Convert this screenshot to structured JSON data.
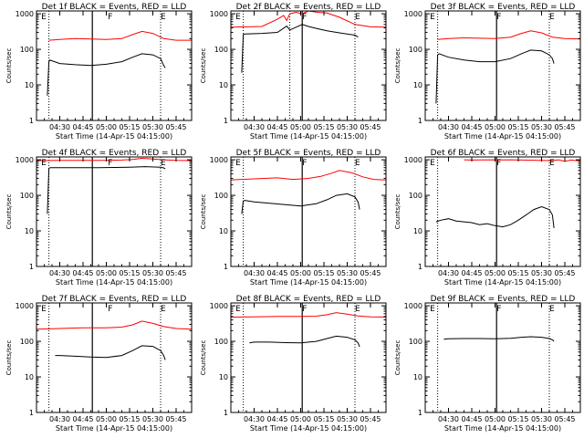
{
  "colors": {
    "events": "#000000",
    "lld": "#ff0000",
    "axes": "#000000",
    "background": "#ffffff"
  },
  "chart_data": [
    {
      "type": "line",
      "title": "Det 1f BLACK = Events, RED = LLD",
      "xlabel": "Start Time (14-Apr-15 04:15:00)",
      "ylabel": "Counts/sec",
      "ylog": true,
      "ylim": [
        1,
        1200
      ],
      "x_unit": "minutes after 04:15:00",
      "xlim": [
        0,
        100
      ],
      "x_ticks": [
        15,
        30,
        45,
        60,
        75,
        90
      ],
      "x_tick_labels": [
        "04:30",
        "04:45",
        "05:00",
        "05:15",
        "05:30",
        "05:45"
      ],
      "y_ticks": [
        1,
        10,
        100,
        1000
      ],
      "y_tick_labels": [
        "1",
        "10",
        "100",
        "1000"
      ],
      "markers": [
        {
          "x": 3,
          "label": "E"
        },
        {
          "x": 46,
          "label": "F"
        },
        {
          "x": 80,
          "label": "E"
        }
      ],
      "dotted_lines": [
        8,
        80
      ],
      "solid_line": 36,
      "series": [
        {
          "name": "LLD",
          "color": "#ff0000",
          "x": [
            8,
            15,
            25,
            35,
            45,
            55,
            62,
            68,
            75,
            82,
            90,
            100
          ],
          "y": [
            180,
            190,
            200,
            195,
            190,
            200,
            260,
            320,
            280,
            200,
            180,
            180
          ]
        },
        {
          "name": "Events",
          "color": "#000000",
          "x": [
            7,
            8,
            8.5,
            15,
            25,
            35,
            45,
            55,
            62,
            68,
            75,
            80,
            82,
            83
          ],
          "y": [
            5,
            45,
            50,
            40,
            37,
            35,
            38,
            45,
            60,
            75,
            70,
            55,
            35,
            30
          ]
        }
      ]
    },
    {
      "type": "line",
      "title": "Det 2f BLACK = Events, RED = LLD",
      "xlabel": "Start Time (14-Apr-15 04:15:00)",
      "ylabel": "Counts/sec",
      "ylog": true,
      "ylim": [
        1,
        1200
      ],
      "x_unit": "minutes after 04:15:00",
      "xlim": [
        0,
        100
      ],
      "x_ticks": [
        15,
        30,
        45,
        60,
        75,
        90
      ],
      "x_tick_labels": [
        "04:30",
        "04:45",
        "05:00",
        "05:15",
        "05:30",
        "05:45"
      ],
      "y_ticks": [
        1,
        10,
        100,
        1000
      ],
      "y_tick_labels": [
        "1",
        "10",
        "100",
        "1000"
      ],
      "markers": [
        {
          "x": 3,
          "label": "E"
        },
        {
          "x": 46,
          "label": "F"
        },
        {
          "x": 80,
          "label": "E"
        }
      ],
      "dotted_lines": [
        8,
        38,
        80
      ],
      "solid_line": 46,
      "series": [
        {
          "name": "LLD",
          "color": "#ff0000",
          "x": [
            0,
            10,
            20,
            30,
            34,
            36,
            38,
            42,
            46,
            50,
            56,
            62,
            70,
            80,
            90,
            100
          ],
          "y": [
            420,
            430,
            440,
            700,
            900,
            650,
            1000,
            1100,
            1000,
            1200,
            1100,
            1050,
            800,
            500,
            430,
            420
          ]
        },
        {
          "name": "Events",
          "color": "#000000",
          "x": [
            7,
            8,
            9,
            20,
            30,
            36,
            38,
            42,
            46,
            50,
            56,
            62,
            70,
            80,
            82
          ],
          "y": [
            22,
            260,
            270,
            280,
            300,
            450,
            350,
            420,
            500,
            440,
            380,
            330,
            290,
            250,
            220
          ]
        }
      ]
    },
    {
      "type": "line",
      "title": "Det 3f BLACK = Events, RED = LLD",
      "xlabel": "Start Time (14-Apr-15 04:15:00)",
      "ylabel": "Counts/sec",
      "ylog": true,
      "ylim": [
        1,
        1200
      ],
      "x_unit": "minutes after 04:15:00",
      "xlim": [
        0,
        100
      ],
      "x_ticks": [
        15,
        30,
        45,
        60,
        75,
        90
      ],
      "x_tick_labels": [
        "04:30",
        "04:45",
        "05:00",
        "05:15",
        "05:30",
        "05:45"
      ],
      "y_ticks": [
        1,
        10,
        100,
        1000
      ],
      "y_tick_labels": [
        "1",
        "10",
        "100",
        "1000"
      ],
      "markers": [
        {
          "x": 3,
          "label": "E"
        },
        {
          "x": 46,
          "label": "F"
        },
        {
          "x": 80,
          "label": "E"
        }
      ],
      "dotted_lines": [
        8,
        80
      ],
      "solid_line": 46,
      "series": [
        {
          "name": "LLD",
          "color": "#ff0000",
          "x": [
            8,
            15,
            25,
            35,
            45,
            55,
            62,
            68,
            75,
            82,
            90,
            100
          ],
          "y": [
            190,
            200,
            210,
            205,
            200,
            220,
            280,
            330,
            290,
            220,
            200,
            195
          ]
        },
        {
          "name": "Events",
          "color": "#000000",
          "x": [
            7,
            8,
            9,
            15,
            25,
            35,
            45,
            55,
            62,
            68,
            75,
            80,
            82,
            83
          ],
          "y": [
            3,
            70,
            75,
            60,
            50,
            45,
            45,
            55,
            75,
            95,
            90,
            70,
            55,
            40
          ]
        }
      ]
    },
    {
      "type": "line",
      "title": "Det 4f BLACK = Events, RED = LLD",
      "xlabel": "Start Time (14-Apr-15 04:15:00)",
      "ylabel": "Counts/sec",
      "ylog": true,
      "ylim": [
        1,
        1200
      ],
      "x_unit": "minutes after 04:15:00",
      "xlim": [
        0,
        100
      ],
      "x_ticks": [
        15,
        30,
        45,
        60,
        75,
        90
      ],
      "x_tick_labels": [
        "04:30",
        "04:45",
        "05:00",
        "05:15",
        "05:30",
        "05:45"
      ],
      "y_ticks": [
        1,
        10,
        100,
        1000
      ],
      "y_tick_labels": [
        "1",
        "10",
        "100",
        "1000"
      ],
      "markers": [
        {
          "x": 3,
          "label": "E"
        },
        {
          "x": 46,
          "label": "F"
        },
        {
          "x": 80,
          "label": "E"
        }
      ],
      "dotted_lines": [
        8,
        80
      ],
      "solid_line": 36,
      "series": [
        {
          "name": "LLD",
          "color": "#ff0000",
          "x": [
            0,
            15,
            30,
            45,
            55,
            62,
            68,
            75,
            82,
            90,
            100
          ],
          "y": [
            950,
            960,
            960,
            960,
            980,
            1020,
            1100,
            1050,
            1000,
            960,
            950
          ]
        },
        {
          "name": "Events",
          "color": "#000000",
          "x": [
            7,
            8,
            9,
            20,
            30,
            40,
            50,
            60,
            70,
            80,
            82,
            83
          ],
          "y": [
            30,
            580,
            600,
            600,
            600,
            600,
            610,
            620,
            640,
            620,
            590,
            560
          ]
        }
      ]
    },
    {
      "type": "line",
      "title": "Det 5f BLACK = Events, RED = LLD",
      "xlabel": "Start Time (14-Apr-15 04:15:00)",
      "ylabel": "Counts/sec",
      "ylog": true,
      "ylim": [
        1,
        1200
      ],
      "x_unit": "minutes after 04:15:00",
      "xlim": [
        0,
        100
      ],
      "x_ticks": [
        15,
        30,
        45,
        60,
        75,
        90
      ],
      "x_tick_labels": [
        "04:30",
        "04:45",
        "05:00",
        "05:15",
        "05:30",
        "05:45"
      ],
      "y_ticks": [
        1,
        10,
        100,
        1000
      ],
      "y_tick_labels": [
        "1",
        "10",
        "100",
        "1000"
      ],
      "markers": [
        {
          "x": 3,
          "label": "E"
        },
        {
          "x": 46,
          "label": "F"
        },
        {
          "x": 80,
          "label": "E"
        }
      ],
      "dotted_lines": [
        8,
        80
      ],
      "solid_line": 46,
      "series": [
        {
          "name": "LLD",
          "color": "#ff0000",
          "x": [
            0,
            15,
            30,
            40,
            50,
            58,
            65,
            70,
            78,
            85,
            92,
            100
          ],
          "y": [
            270,
            290,
            310,
            280,
            300,
            340,
            420,
            500,
            430,
            330,
            280,
            270
          ]
        },
        {
          "name": "Events",
          "color": "#000000",
          "x": [
            7,
            8,
            9,
            15,
            25,
            35,
            45,
            55,
            62,
            68,
            75,
            80,
            82,
            83
          ],
          "y": [
            30,
            70,
            72,
            65,
            60,
            55,
            50,
            58,
            75,
            100,
            110,
            90,
            65,
            40
          ]
        }
      ]
    },
    {
      "type": "line",
      "title": "Det 6f BLACK = Events, RED = LLD",
      "xlabel": "Start Time (14-Apr-15 04:15:00)",
      "ylabel": "Counts/sec",
      "ylog": true,
      "ylim": [
        1,
        1200
      ],
      "x_unit": "minutes after 04:15:00",
      "xlim": [
        0,
        100
      ],
      "x_ticks": [
        15,
        30,
        45,
        60,
        75,
        90
      ],
      "x_tick_labels": [
        "04:30",
        "04:45",
        "05:00",
        "05:15",
        "05:30",
        "05:45"
      ],
      "y_ticks": [
        1,
        10,
        100,
        1000
      ],
      "y_tick_labels": [
        "1",
        "10",
        "100",
        "1000"
      ],
      "markers": [
        {
          "x": 3,
          "label": "E"
        },
        {
          "x": 46,
          "label": "F"
        },
        {
          "x": 80,
          "label": "E"
        }
      ],
      "dotted_lines": [
        8,
        80
      ],
      "solid_line": 46,
      "series": [
        {
          "name": "LLD",
          "color": "#ff0000",
          "x": [
            25,
            30,
            35,
            45,
            50,
            55,
            82,
            86,
            90,
            94,
            98,
            100
          ],
          "y": [
            1000,
            980,
            990,
            1000,
            990,
            1000,
            950,
            1000,
            900,
            980,
            940,
            1000
          ]
        },
        {
          "name": "Events",
          "color": "#000000",
          "x": [
            7,
            10,
            15,
            20,
            25,
            30,
            35,
            40,
            45,
            50,
            55,
            60,
            65,
            70,
            75,
            80,
            82,
            83
          ],
          "y": [
            18,
            20,
            22,
            19,
            18,
            17,
            15,
            16,
            14,
            13,
            15,
            20,
            28,
            40,
            48,
            40,
            28,
            12
          ]
        }
      ]
    },
    {
      "type": "line",
      "title": "Det 7f BLACK = Events, RED = LLD",
      "xlabel": "Start Time (14-Apr-15 04:15:00)",
      "ylabel": "Counts/sec",
      "ylog": true,
      "ylim": [
        1,
        1200
      ],
      "x_unit": "minutes after 04:15:00",
      "xlim": [
        0,
        100
      ],
      "x_ticks": [
        15,
        30,
        45,
        60,
        75,
        90
      ],
      "x_tick_labels": [
        "04:30",
        "04:45",
        "05:00",
        "05:15",
        "05:30",
        "05:45"
      ],
      "y_ticks": [
        1,
        10,
        100,
        1000
      ],
      "y_tick_labels": [
        "1",
        "10",
        "100",
        "1000"
      ],
      "markers": [
        {
          "x": 3,
          "label": "E"
        },
        {
          "x": 46,
          "label": "F"
        },
        {
          "x": 80,
          "label": "E"
        }
      ],
      "dotted_lines": [
        8,
        80
      ],
      "solid_line": 36,
      "series": [
        {
          "name": "LLD",
          "color": "#ff0000",
          "x": [
            0,
            15,
            30,
            45,
            55,
            62,
            68,
            75,
            82,
            90,
            100
          ],
          "y": [
            220,
            230,
            240,
            240,
            250,
            290,
            370,
            320,
            260,
            230,
            220
          ]
        },
        {
          "name": "Events",
          "color": "#000000",
          "x": [
            12,
            15,
            25,
            35,
            45,
            55,
            62,
            68,
            75,
            80,
            82,
            83
          ],
          "y": [
            40,
            40,
            38,
            36,
            35,
            40,
            55,
            75,
            72,
            55,
            40,
            30
          ]
        }
      ]
    },
    {
      "type": "line",
      "title": "Det 8f BLACK = Events, RED = LLD",
      "xlabel": "Start Time (14-Apr-15 04:15:00)",
      "ylabel": "Counts/sec",
      "ylog": true,
      "ylim": [
        1,
        1200
      ],
      "x_unit": "minutes after 04:15:00",
      "xlim": [
        0,
        100
      ],
      "x_ticks": [
        15,
        30,
        45,
        60,
        75,
        90
      ],
      "x_tick_labels": [
        "04:30",
        "04:45",
        "05:00",
        "05:15",
        "05:30",
        "05:45"
      ],
      "y_ticks": [
        1,
        10,
        100,
        1000
      ],
      "y_tick_labels": [
        "1",
        "10",
        "100",
        "1000"
      ],
      "markers": [
        {
          "x": 3,
          "label": "E"
        },
        {
          "x": 46,
          "label": "F"
        },
        {
          "x": 80,
          "label": "E"
        }
      ],
      "dotted_lines": [
        8,
        80
      ],
      "solid_line": 46,
      "series": [
        {
          "name": "LLD",
          "color": "#ff0000",
          "x": [
            0,
            15,
            30,
            45,
            55,
            62,
            68,
            75,
            82,
            90,
            100
          ],
          "y": [
            480,
            490,
            500,
            500,
            510,
            560,
            640,
            580,
            520,
            490,
            480
          ]
        },
        {
          "name": "Events",
          "color": "#000000",
          "x": [
            12,
            15,
            25,
            35,
            45,
            55,
            62,
            68,
            75,
            80,
            82,
            83
          ],
          "y": [
            90,
            95,
            95,
            92,
            90,
            100,
            120,
            140,
            130,
            110,
            90,
            70
          ]
        }
      ]
    },
    {
      "type": "line",
      "title": "Det 9f BLACK = Events, RED = LLD",
      "xlabel": "Start Time (14-Apr-15 04:15:00)",
      "ylabel": "Counts/sec",
      "ylog": true,
      "ylim": [
        1,
        1200
      ],
      "x_unit": "minutes after 04:15:00",
      "xlim": [
        0,
        100
      ],
      "x_ticks": [
        15,
        30,
        45,
        60,
        75,
        90
      ],
      "x_tick_labels": [
        "04:30",
        "04:45",
        "05:00",
        "05:15",
        "05:30",
        "05:45"
      ],
      "y_ticks": [
        1,
        10,
        100,
        1000
      ],
      "y_tick_labels": [
        "1",
        "10",
        "100",
        "1000"
      ],
      "markers": [
        {
          "x": 3,
          "label": "E"
        },
        {
          "x": 46,
          "label": "F"
        },
        {
          "x": 80,
          "label": "E"
        }
      ],
      "dotted_lines": [
        8,
        80
      ],
      "solid_line": 46,
      "series": [
        {
          "name": "Events",
          "color": "#000000",
          "x": [
            12,
            15,
            25,
            35,
            45,
            55,
            62,
            68,
            75,
            80,
            82,
            83
          ],
          "y": [
            115,
            118,
            120,
            120,
            118,
            122,
            130,
            135,
            130,
            120,
            110,
            100
          ]
        }
      ]
    }
  ]
}
